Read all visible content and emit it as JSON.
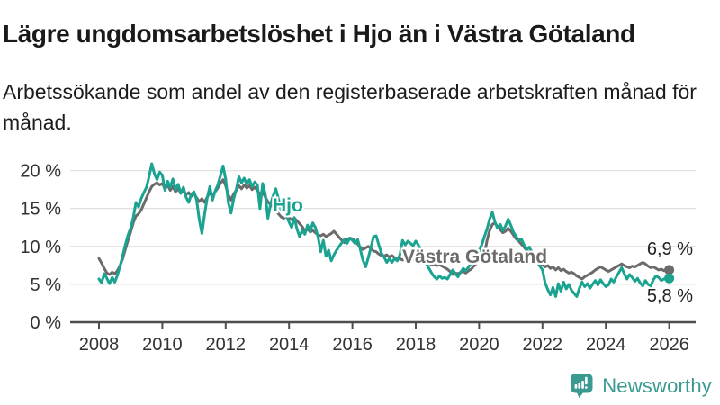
{
  "header": {
    "title": "Lägre ungdomsarbetslöshet i Hjo än i Västra Götaland",
    "subtitle": "Arbetssökande som andel av den registerbaserade arbetskraften månad för månad."
  },
  "chart_data": {
    "type": "line",
    "title": "Lägre ungdomsarbetslöshet i Hjo än i Västra Götaland",
    "subtitle": "Arbetssökande som andel av den registerbaserade arbetskraften månad för månad.",
    "x_start_year": 2008,
    "x_frequency": "monthly",
    "x_ticks": [
      2008,
      2010,
      2012,
      2014,
      2016,
      2018,
      2020,
      2022,
      2024,
      2026
    ],
    "y_ticks": [
      {
        "label": "0 %",
        "value": 0
      },
      {
        "label": "5 %",
        "value": 5
      },
      {
        "label": "10 %",
        "value": 10
      },
      {
        "label": "15 %",
        "value": 15
      },
      {
        "label": "20 %",
        "value": 20
      }
    ],
    "ylim": [
      0,
      21.5
    ],
    "grid": true,
    "legend": "inline-labels",
    "axis_color": "#4d4d4d",
    "grid_color": "#e1e1e1",
    "series": [
      {
        "id": "vastra-gotaland",
        "name": "Västra Götaland",
        "color": "#6b6b6b",
        "end_label": "6,9 %",
        "end_value": 6.9,
        "values": [
          8.4,
          7.8,
          7.1,
          6.5,
          6.3,
          6.6,
          6.4,
          6.8,
          7.5,
          8.4,
          9.6,
          10.8,
          11.9,
          13.1,
          14.0,
          14.3,
          14.8,
          15.6,
          16.4,
          17.2,
          17.9,
          18.2,
          18.4,
          18.1,
          18.3,
          17.6,
          18.1,
          17.4,
          17.9,
          17.2,
          17.6,
          17.0,
          17.4,
          16.8,
          17.1,
          16.6,
          17.0,
          16.4,
          15.9,
          16.3,
          15.8,
          16.5,
          17.1,
          16.6,
          17.2,
          17.7,
          18.3,
          18.8,
          18.0,
          16.8,
          16.1,
          16.9,
          17.4,
          18.0,
          17.6,
          18.1,
          17.7,
          18.0,
          17.5,
          17.8,
          17.4,
          16.9,
          17.2,
          16.5,
          15.9,
          15.5,
          15.2,
          14.8,
          14.3,
          13.9,
          13.7,
          14.0,
          13.8,
          13.5,
          13.7,
          13.4,
          13.0,
          12.6,
          12.0,
          12.3,
          11.9,
          12.1,
          11.8,
          11.5,
          11.4,
          11.6,
          11.3,
          11.5,
          11.7,
          12.0,
          11.6,
          11.2,
          10.8,
          10.5,
          10.9,
          11.1,
          11.0,
          10.7,
          10.3,
          9.9,
          9.6,
          9.8,
          10.0,
          9.7,
          9.4,
          9.3,
          9.0,
          8.8,
          8.7,
          8.9,
          8.6,
          8.8,
          8.5,
          8.3,
          8.4,
          8.2,
          8.5,
          8.3,
          8.1,
          8.3,
          8.2,
          8.4,
          8.1,
          7.9,
          7.7,
          7.8,
          7.6,
          7.7,
          7.5,
          7.6,
          7.4,
          7.2,
          7.0,
          6.7,
          6.3,
          6.5,
          6.4,
          6.6,
          6.7,
          6.5,
          6.8,
          7.0,
          7.4,
          7.8,
          8.1,
          8.3,
          8.9,
          10.8,
          12.1,
          12.9,
          13.1,
          12.6,
          12.2,
          11.8,
          12.0,
          12.4,
          12.0,
          11.5,
          11.0,
          10.7,
          10.3,
          9.9,
          9.5,
          9.2,
          8.9,
          8.5,
          8.2,
          7.9,
          7.6,
          7.3,
          7.5,
          7.1,
          7.3,
          6.9,
          7.2,
          6.8,
          7.0,
          6.7,
          6.5,
          6.6,
          6.4,
          6.1,
          5.9,
          5.7,
          6.0,
          6.2,
          6.4,
          6.6,
          6.9,
          7.1,
          7.3,
          7.1,
          6.9,
          6.7,
          6.9,
          7.1,
          7.3,
          7.5,
          7.7,
          7.5,
          7.3,
          7.2,
          7.4,
          7.3,
          7.5,
          7.7,
          7.9,
          7.7,
          7.4,
          7.2,
          7.3,
          7.1,
          6.9,
          7.0,
          6.8,
          6.9,
          6.9
        ]
      },
      {
        "id": "hjo",
        "name": "Hjo",
        "color": "#19a390",
        "end_label": "5,8 %",
        "end_value": 5.8,
        "values": [
          5.7,
          5.2,
          6.4,
          5.8,
          5.1,
          5.9,
          5.3,
          6.2,
          7.4,
          8.8,
          10.2,
          11.5,
          12.4,
          13.8,
          15.8,
          15.2,
          16.3,
          17.1,
          17.8,
          19.2,
          20.9,
          19.6,
          18.8,
          19.8,
          19.4,
          17.4,
          18.6,
          17.8,
          18.9,
          17.5,
          18.2,
          17.0,
          17.8,
          16.5,
          15.8,
          16.9,
          17.2,
          16.1,
          13.5,
          11.7,
          14.2,
          16.4,
          17.9,
          16.1,
          17.3,
          18.1,
          19.3,
          20.6,
          18.9,
          15.8,
          14.4,
          16.2,
          17.5,
          19.2,
          18.4,
          19.0,
          18.2,
          18.8,
          17.9,
          18.5,
          18.1,
          15.0,
          18.3,
          16.9,
          13.7,
          15.6,
          16.7,
          17.6,
          16.2,
          14.8,
          15.3,
          14.1,
          13.2,
          12.5,
          13.8,
          12.3,
          11.3,
          12.1,
          11.6,
          12.8,
          12.0,
          13.1,
          12.5,
          11.2,
          9.3,
          10.8,
          8.7,
          9.5,
          8.1,
          8.9,
          9.5,
          10.0,
          10.5,
          10.9,
          10.4,
          11.1,
          10.8,
          10.4,
          10.9,
          9.6,
          8.2,
          7.3,
          8.5,
          9.8,
          11.3,
          11.4,
          10.2,
          9.1,
          8.6,
          7.9,
          8.4,
          7.9,
          8.4,
          8.1,
          8.9,
          10.8,
          10.2,
          10.7,
          10.4,
          10.1,
          10.7,
          10.2,
          9.4,
          8.6,
          7.8,
          7.1,
          6.5,
          6.0,
          5.7,
          6.1,
          5.8,
          5.9,
          5.7,
          6.3,
          6.9,
          6.4,
          6.0,
          6.6,
          7.1,
          6.8,
          7.3,
          7.8,
          8.3,
          8.9,
          9.4,
          10.2,
          11.3,
          12.3,
          13.6,
          14.5,
          13.2,
          12.4,
          12.9,
          12.1,
          12.7,
          13.6,
          12.8,
          11.9,
          11.3,
          10.8,
          11.0,
          10.2,
          9.6,
          9.9,
          9.2,
          8.6,
          8.0,
          7.4,
          6.9,
          5.2,
          4.3,
          3.6,
          4.6,
          3.4,
          5.1,
          4.1,
          5.3,
          4.4,
          5.0,
          4.2,
          3.8,
          3.4,
          4.5,
          5.3,
          4.7,
          5.1,
          4.5,
          5.0,
          5.5,
          4.9,
          5.6,
          5.1,
          4.7,
          4.9,
          5.7,
          5.3,
          6.0,
          6.6,
          7.2,
          6.4,
          5.7,
          6.3,
          5.9,
          5.4,
          5.8,
          5.2,
          4.8,
          5.5,
          5.0,
          4.8,
          5.6,
          6.1,
          5.9,
          5.5,
          5.7,
          5.8,
          5.8
        ]
      }
    ]
  },
  "footer": {
    "brand": "Newsworthy",
    "brand_color": "#3a9a92"
  }
}
